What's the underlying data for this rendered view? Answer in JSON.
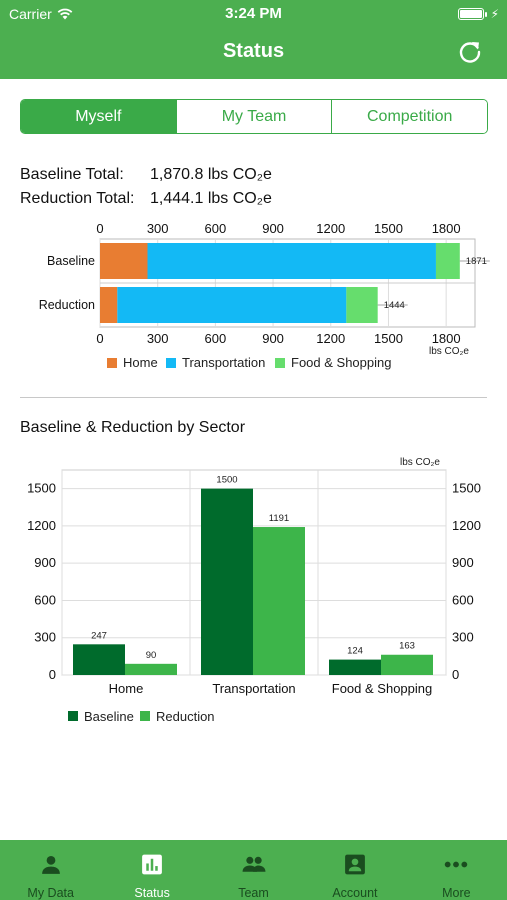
{
  "status_bar": {
    "carrier": "Carrier",
    "time": "3:24 PM"
  },
  "header": {
    "title": "Status"
  },
  "segments": [
    {
      "label": "Myself",
      "active": true
    },
    {
      "label": "My Team",
      "active": false
    },
    {
      "label": "Competition",
      "active": false
    }
  ],
  "totals": {
    "baseline_label": "Baseline Total:",
    "baseline_value": "1,870.8 lbs CO₂e",
    "reduction_label": "Reduction Total:",
    "reduction_value": "1,444.1 lbs CO₂e"
  },
  "section_title": "Baseline & Reduction by Sector",
  "chart_data": [
    {
      "type": "bar",
      "orientation": "horizontal",
      "stacked": true,
      "categories": [
        "Baseline",
        "Reduction"
      ],
      "series": [
        {
          "name": "Home",
          "values": [
            247,
            90
          ],
          "color": "#e87d32"
        },
        {
          "name": "Transportation",
          "values": [
            1500,
            1191
          ],
          "color": "#13b9f5"
        },
        {
          "name": "Food & Shopping",
          "values": [
            124,
            163
          ],
          "color": "#66dd6d"
        }
      ],
      "totals": [
        1871,
        1444
      ],
      "xlim": [
        0,
        1950
      ],
      "ticks": [
        0,
        300,
        600,
        900,
        1200,
        1500,
        1800
      ],
      "unit": "lbs CO₂e",
      "legend": "bottom-left",
      "grid": true
    },
    {
      "type": "bar",
      "orientation": "vertical",
      "categories": [
        "Home",
        "Transportation",
        "Food & Shopping"
      ],
      "series": [
        {
          "name": "Baseline",
          "values": [
            247,
            1500,
            124
          ],
          "color": "#006b2c"
        },
        {
          "name": "Reduction",
          "values": [
            90,
            1191,
            163
          ],
          "color": "#3db54a"
        }
      ],
      "ylim": [
        0,
        1650
      ],
      "ticks": [
        0,
        300,
        600,
        900,
        1200,
        1500
      ],
      "unit": "lbs CO₂e",
      "legend": "bottom-left",
      "grid": true
    }
  ],
  "tabs": [
    {
      "label": "My Data",
      "icon": "person-icon",
      "active": false
    },
    {
      "label": "Status",
      "icon": "bar-chart-icon",
      "active": true
    },
    {
      "label": "Team",
      "icon": "group-icon",
      "active": false
    },
    {
      "label": "Account",
      "icon": "account-box-icon",
      "active": false
    },
    {
      "label": "More",
      "icon": "more-dots-icon",
      "active": false
    }
  ]
}
